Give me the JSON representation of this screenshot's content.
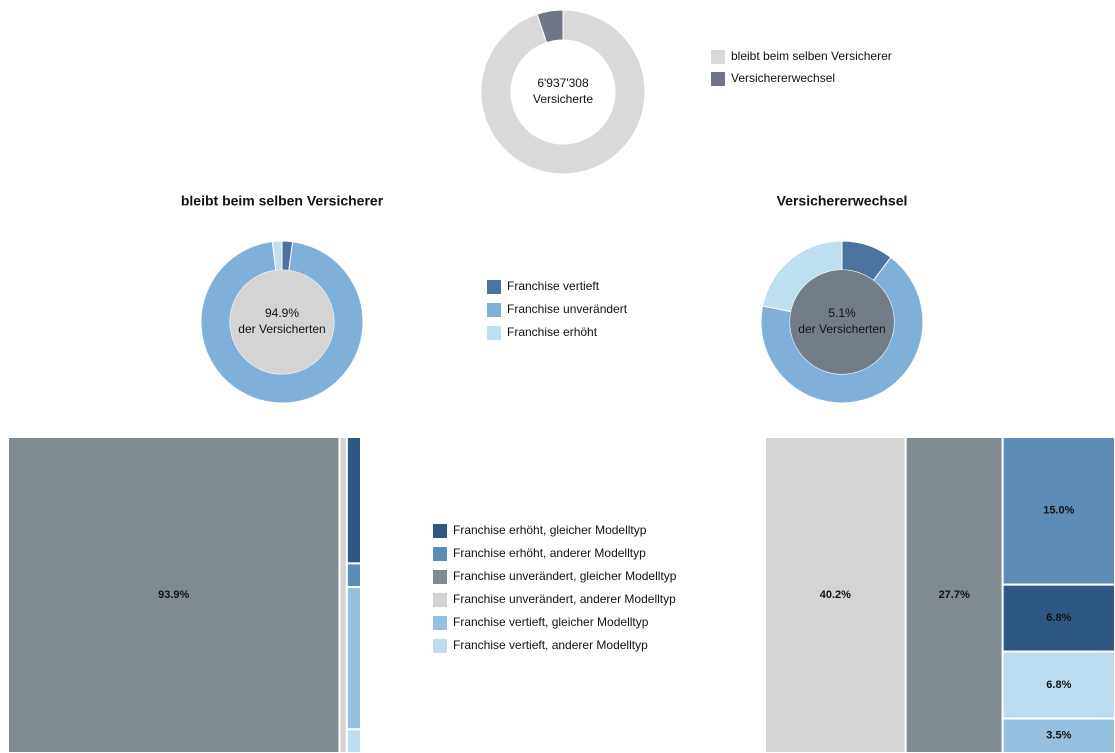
{
  "chart_data": [
    {
      "type": "donut",
      "categories": [
        "bleibt beim selben Versicherer",
        "Versichererwechsel"
      ],
      "values": [
        94.9,
        5.1
      ],
      "colors": [
        "#d9d9d9",
        "#6f7787"
      ],
      "center_text": [
        "6'937'308",
        "Versicherte"
      ]
    },
    {
      "type": "donut",
      "title": "bleibt beim selben Versicherer",
      "categories": [
        "Franchise vertieft",
        "Franchise unverändert",
        "Franchise erhöht"
      ],
      "values": [
        2.1,
        96.0,
        1.9
      ],
      "colors": [
        "#4a73a0",
        "#7fb0d9",
        "#bedff0"
      ],
      "center_text": [
        "94.9%",
        "der Versicherten"
      ],
      "center_color": "#d4d4d4"
    },
    {
      "type": "donut",
      "title": "Versichererwechsel",
      "values": [
        10.3,
        67.9,
        21.8
      ],
      "center_text": [
        "5.1%",
        "der Versicherten"
      ],
      "center_color": "#737d88"
    },
    {
      "type": "treemap",
      "categories": [
        "Franchise erhöht, gleicher Modelltyp",
        "Franchise erhöht, anderer Modelltyp",
        "Franchise unverändert, gleicher Modelltyp",
        "Franchise unverändert, anderer Modelltyp",
        "Franchise vertieft, gleicher Modelltyp",
        "Franchise vertieft, anderer Modelltyp"
      ],
      "colors": [
        "#2e5784",
        "#5b8db8",
        "#808a91",
        "#d4d4d4",
        "#96c0df",
        "#bddcef"
      ],
      "values": [
        1.6,
        0.3,
        93.9,
        2.1,
        1.8,
        0.3
      ],
      "value_labels": [
        null,
        null,
        "93.9%",
        null,
        null,
        null
      ]
    },
    {
      "type": "treemap",
      "values": [
        6.8,
        15.0,
        27.7,
        40.2,
        3.5,
        6.8
      ],
      "value_labels": [
        "6.8%",
        "15.0%",
        "27.7%",
        "40.2%",
        "3.5%",
        "6.8%"
      ]
    }
  ]
}
